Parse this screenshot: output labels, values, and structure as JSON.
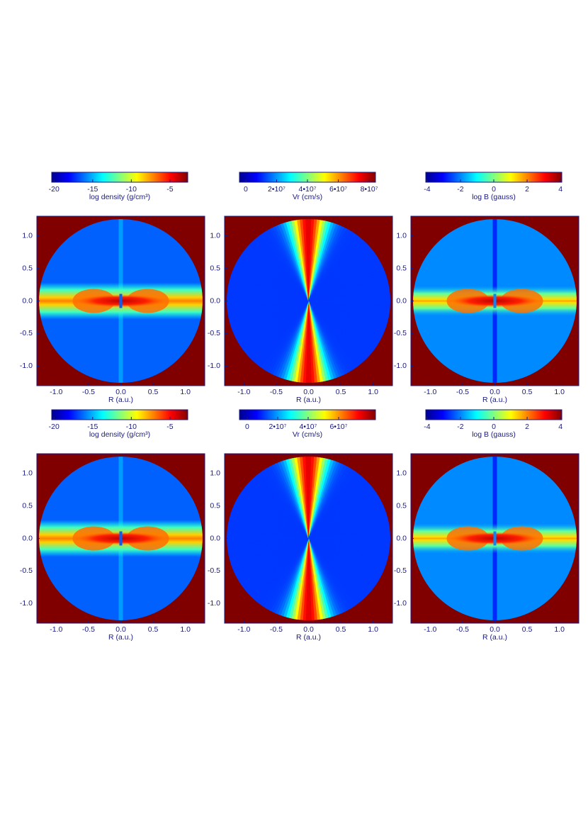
{
  "chart_data": [
    {
      "type": "heatmap",
      "colorbar": {
        "label": "log density (g/cm³)",
        "lim": [
          -20.3,
          -2.7
        ],
        "ticks": [
          -20,
          -15,
          -10,
          -5
        ]
      },
      "xlabel": "R (a.u.)",
      "xlim": [
        -1.3,
        1.3
      ],
      "ylim": [
        -1.3,
        1.3
      ],
      "xticks": [
        {
          "value": -1,
          "label": "-1.0"
        },
        {
          "value": -0.5,
          "label": "-0.5"
        },
        {
          "value": 0,
          "label": "0.0"
        },
        {
          "value": 0.5,
          "label": "0.5"
        },
        {
          "value": 1,
          "label": "1.0"
        }
      ],
      "yticks": [
        {
          "value": -1,
          "label": "-1.0"
        },
        {
          "value": -0.5,
          "label": "-0.5"
        },
        {
          "value": 0,
          "label": "0.0"
        },
        {
          "value": 0.5,
          "label": "0.5"
        },
        {
          "value": 1,
          "label": "1.0"
        }
      ]
    },
    {
      "type": "heatmap",
      "colorbar": {
        "label": "Vr (cm/s)",
        "lim": [
          -4100000,
          84100000
        ],
        "ticks": [
          0,
          {
            "value": 20000000,
            "label": "2•10⁷"
          },
          {
            "value": 40000000,
            "label": "4•10⁷"
          },
          {
            "value": 60000000,
            "label": "6•10⁷"
          },
          {
            "value": 80000000,
            "label": "8•10⁷"
          }
        ]
      },
      "xlabel": "R (a.u.)",
      "xlim": [
        -1.3,
        1.3
      ],
      "ylim": [
        -1.3,
        1.3
      ],
      "xticks": [
        {
          "value": -1,
          "label": "-1.0"
        },
        {
          "value": -0.5,
          "label": "-0.5"
        },
        {
          "value": 0,
          "label": "0.0"
        },
        {
          "value": 0.5,
          "label": "0.5"
        },
        {
          "value": 1,
          "label": "1.0"
        }
      ],
      "yticks": [
        {
          "value": -1,
          "label": "-1.0"
        },
        {
          "value": -0.5,
          "label": "-0.5"
        },
        {
          "value": 0,
          "label": "0.0"
        },
        {
          "value": 0.5,
          "label": "0.5"
        },
        {
          "value": 1,
          "label": "1.0"
        }
      ]
    },
    {
      "type": "heatmap",
      "colorbar": {
        "label": "log B (gauss)",
        "lim": [
          -4.08,
          4.08
        ],
        "ticks": [
          -4,
          -2,
          0,
          2,
          4
        ]
      },
      "xlabel": "R (a.u.)",
      "xlim": [
        -1.3,
        1.3
      ],
      "ylim": [
        -1.3,
        1.3
      ],
      "xticks": [
        {
          "value": -1,
          "label": "-1.0"
        },
        {
          "value": -0.5,
          "label": "-0.5"
        },
        {
          "value": 0,
          "label": "0.0"
        },
        {
          "value": 0.5,
          "label": "0.5"
        },
        {
          "value": 1,
          "label": "1.0"
        }
      ],
      "yticks": [
        {
          "value": -1,
          "label": "-1.0"
        },
        {
          "value": -0.5,
          "label": "-0.5"
        },
        {
          "value": 0,
          "label": "0.0"
        },
        {
          "value": 0.5,
          "label": "0.5"
        },
        {
          "value": 1,
          "label": "1.0"
        }
      ]
    },
    {
      "type": "heatmap",
      "colorbar": {
        "label": "log density (g/cm³)",
        "lim": [
          -20.3,
          -2.7
        ],
        "ticks": [
          -20,
          -15,
          -10,
          -5
        ]
      },
      "xlabel": "R (a.u.)",
      "xlim": [
        -1.3,
        1.3
      ],
      "ylim": [
        -1.3,
        1.3
      ],
      "xticks": [
        {
          "value": -1,
          "label": "-1.0"
        },
        {
          "value": -0.5,
          "label": "-0.5"
        },
        {
          "value": 0,
          "label": "0.0"
        },
        {
          "value": 0.5,
          "label": "0.5"
        },
        {
          "value": 1,
          "label": "1.0"
        }
      ],
      "yticks": [
        {
          "value": -1,
          "label": "-1.0"
        },
        {
          "value": -0.5,
          "label": "-0.5"
        },
        {
          "value": 0,
          "label": "0.0"
        },
        {
          "value": 0.5,
          "label": "0.5"
        },
        {
          "value": 1,
          "label": "1.0"
        }
      ]
    },
    {
      "type": "heatmap",
      "colorbar": {
        "label": "Vr (cm/s)",
        "lim": [
          -5100000,
          84200000
        ],
        "ticks": [
          0,
          {
            "value": 20000000,
            "label": "2•10⁷"
          },
          {
            "value": 40000000,
            "label": "4•10⁷"
          },
          {
            "value": 60000000,
            "label": "6•10⁷"
          }
        ]
      },
      "xlabel": "R (a.u.)",
      "xlim": [
        -1.3,
        1.3
      ],
      "ylim": [
        -1.3,
        1.3
      ],
      "xticks": [
        {
          "value": -1,
          "label": "-1.0"
        },
        {
          "value": -0.5,
          "label": "-0.5"
        },
        {
          "value": 0,
          "label": "0.0"
        },
        {
          "value": 0.5,
          "label": "0.5"
        },
        {
          "value": 1,
          "label": "1.0"
        }
      ],
      "yticks": [
        {
          "value": -1,
          "label": "-1.0"
        },
        {
          "value": -0.5,
          "label": "-0.5"
        },
        {
          "value": 0,
          "label": "0.0"
        },
        {
          "value": 0.5,
          "label": "0.5"
        },
        {
          "value": 1,
          "label": "1.0"
        }
      ]
    },
    {
      "type": "heatmap",
      "colorbar": {
        "label": "log B (gauss)",
        "lim": [
          -4.08,
          4.08
        ],
        "ticks": [
          -4,
          -2,
          0,
          2,
          4
        ]
      },
      "xlabel": "R (a.u.)",
      "xlim": [
        -1.3,
        1.3
      ],
      "ylim": [
        -1.3,
        1.3
      ],
      "xticks": [
        {
          "value": -1,
          "label": "-1.0"
        },
        {
          "value": -0.5,
          "label": "-0.5"
        },
        {
          "value": 0,
          "label": "0.0"
        },
        {
          "value": 0.5,
          "label": "0.5"
        },
        {
          "value": 1,
          "label": "1.0"
        }
      ],
      "yticks": [
        {
          "value": -1,
          "label": "-1.0"
        },
        {
          "value": -0.5,
          "label": "-0.5"
        },
        {
          "value": 0,
          "label": "0.0"
        },
        {
          "value": 0.5,
          "label": "0.5"
        },
        {
          "value": 1,
          "label": "1.0"
        }
      ]
    }
  ]
}
